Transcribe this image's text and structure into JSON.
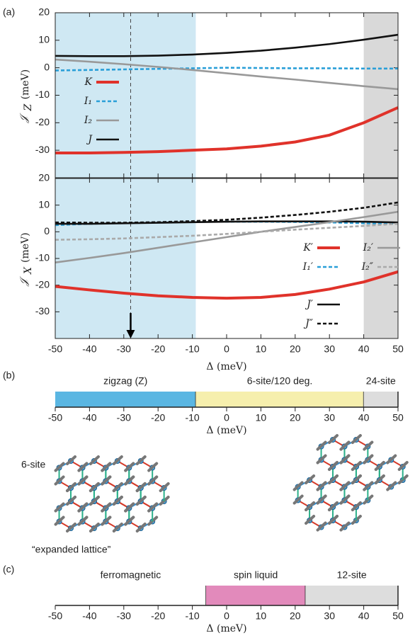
{
  "chart_data": [
    {
      "type": "line",
      "panel_label": "(a)",
      "ylabel": "𝒥",
      "ylabel_sub": "Z",
      "ylabel_unit": "(meV)",
      "xlim": [
        -50,
        50
      ],
      "xticks": [
        -50,
        -40,
        -30,
        -20,
        -10,
        0,
        10,
        20,
        30,
        40,
        50
      ],
      "ylim": [
        -40,
        20
      ],
      "yticks": [
        -30,
        -20,
        -10,
        0,
        10,
        20
      ],
      "shaded_regions": [
        {
          "from": -50,
          "to": -9,
          "color": "#cfe8f3"
        },
        {
          "from": 40,
          "to": 50,
          "color": "#d9d9d9"
        }
      ],
      "marker_x": -28,
      "legend": "left",
      "x": [
        -50,
        -40,
        -30,
        -20,
        -10,
        0,
        10,
        20,
        30,
        40,
        50
      ],
      "series": [
        {
          "name": "K",
          "color": "#e0322a",
          "dash": false,
          "values": [
            -31,
            -31,
            -30.8,
            -30.5,
            -30,
            -29.5,
            -28.5,
            -27,
            -24.5,
            -20,
            -14.5
          ]
        },
        {
          "name": "I₁",
          "color": "#2a9fd8",
          "dash": true,
          "values": [
            -1,
            -0.8,
            -0.6,
            -0.4,
            -0.2,
            0,
            -0.1,
            -0.2,
            -0.2,
            -0.3,
            -0.3
          ]
        },
        {
          "name": "I₂",
          "color": "#999999",
          "dash": false,
          "values": [
            3,
            2.2,
            1.3,
            0.3,
            -0.8,
            -2,
            -3.2,
            -4.3,
            -5.5,
            -6.7,
            -7.8
          ]
        },
        {
          "name": "J",
          "color": "#111111",
          "dash": false,
          "values": [
            4.3,
            4.2,
            4.2,
            4.4,
            4.8,
            5.4,
            6.2,
            7.3,
            8.6,
            10.2,
            12
          ]
        }
      ]
    },
    {
      "type": "line",
      "ylabel": "𝒥",
      "ylabel_sub": "X",
      "ylabel_unit": "(meV)",
      "xlabel": "Δ (meV)",
      "xlim": [
        -50,
        50
      ],
      "xticks": [
        -50,
        -40,
        -30,
        -20,
        -10,
        0,
        10,
        20,
        30,
        40,
        50
      ],
      "ylim": [
        -40,
        20
      ],
      "yticks": [
        -30,
        -20,
        -10,
        0,
        10,
        20
      ],
      "shaded_regions": [
        {
          "from": -50,
          "to": -9,
          "color": "#cfe8f3"
        },
        {
          "from": 40,
          "to": 50,
          "color": "#d9d9d9"
        }
      ],
      "marker_x": -28,
      "legend": "lower right",
      "x": [
        -50,
        -40,
        -30,
        -20,
        -10,
        0,
        10,
        20,
        30,
        40,
        50
      ],
      "series": [
        {
          "name": "K′",
          "color": "#e0322a",
          "dash": false,
          "values": [
            -20.5,
            -21.8,
            -23,
            -24,
            -24.6,
            -24.9,
            -24.6,
            -23.5,
            -21.5,
            -18.8,
            -15
          ]
        },
        {
          "name": "I₁′",
          "color": "#2a9fd8",
          "dash": true,
          "values": [
            2.5,
            3,
            3.3,
            3.5,
            3.7,
            3.8,
            3.8,
            3.7,
            3.5,
            3.2,
            3
          ]
        },
        {
          "name": "J′",
          "color": "#111111",
          "dash": false,
          "values": [
            3,
            3,
            3.2,
            3.4,
            3.6,
            3.8,
            3.9,
            3.9,
            3.9,
            3.8,
            3.5
          ]
        },
        {
          "name": "J″",
          "color": "#111111",
          "dash": true,
          "values": [
            3.5,
            3.4,
            3.4,
            3.6,
            4,
            4.5,
            5.3,
            6.3,
            7.5,
            9,
            11
          ]
        },
        {
          "name": "I₂′",
          "color": "#999999",
          "dash": false,
          "values": [
            -11.5,
            -9.8,
            -8,
            -6,
            -4,
            -2,
            0,
            1.8,
            3.6,
            5.5,
            7.5
          ]
        },
        {
          "name": "I₂″",
          "color": "#aaaaaa",
          "dash": true,
          "values": [
            -3,
            -2.8,
            -2.5,
            -2,
            -1.5,
            -0.8,
            0,
            0.8,
            1.5,
            2.2,
            3
          ]
        }
      ]
    },
    {
      "type": "phase",
      "panel_label": "(b)",
      "xlabel": "Δ (meV)",
      "structure_label": "6-site",
      "xlim": [
        -50,
        50
      ],
      "xticks": [
        -50,
        -40,
        -30,
        -20,
        -10,
        0,
        10,
        20,
        30,
        40,
        50
      ],
      "phases": [
        {
          "label": "zigzag (Z)",
          "from": -50,
          "to": -9,
          "color": "#5ab6e2",
          "text_color": "#222222"
        },
        {
          "label": "6-site/120 deg.",
          "from": -9,
          "to": 40,
          "color": "#f6efad",
          "text_color": "#222222"
        },
        {
          "label": "24-site",
          "from": 40,
          "to": 50,
          "color": "#dddddd",
          "text_color": "#8a8a8a"
        }
      ]
    },
    {
      "type": "phase",
      "panel_label": "(c)",
      "xlabel": "Δ (meV)",
      "annotation": "“expanded lattice”",
      "xlim": [
        -50,
        50
      ],
      "xticks": [
        -50,
        -40,
        -30,
        -20,
        -10,
        0,
        10,
        20,
        30,
        40,
        50
      ],
      "phases": [
        {
          "label": "ferromagnetic",
          "from": -50,
          "to": -6,
          "color": "#ffffff",
          "text_color": "#222222"
        },
        {
          "label": "spin liquid",
          "from": -6,
          "to": 23,
          "color": "#e28abb",
          "text_color": "#222222"
        },
        {
          "label": "12-site",
          "from": 23,
          "to": 50,
          "color": "#dddddd",
          "text_color": "#8a8a8a"
        }
      ]
    }
  ]
}
